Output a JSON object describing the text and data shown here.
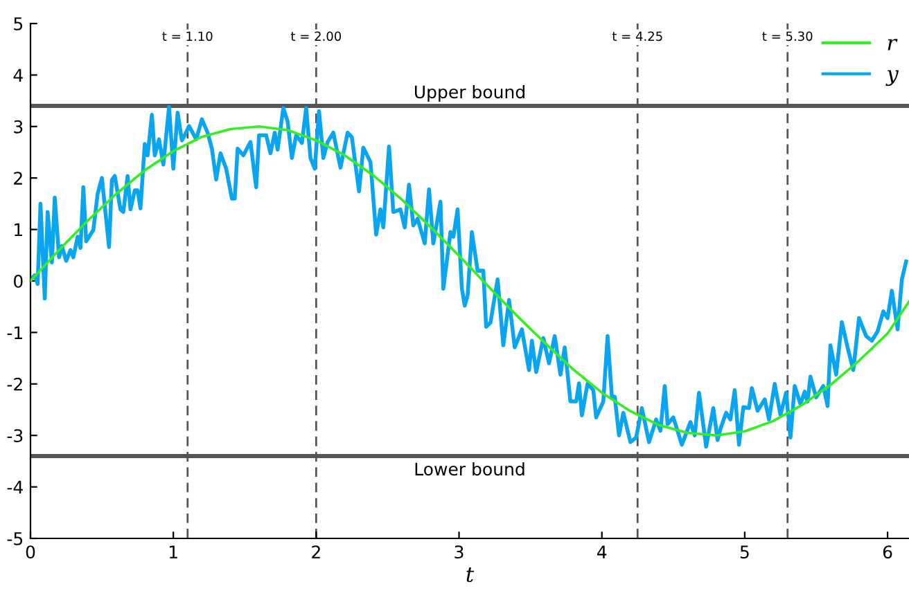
{
  "chart_data": {
    "type": "line",
    "xlabel": "t",
    "xlim": [
      0,
      6.15
    ],
    "ylim": [
      -5,
      5
    ],
    "xticks": [
      0,
      1,
      2,
      3,
      4,
      5,
      6
    ],
    "yticks": [
      -5,
      -4,
      -3,
      -2,
      -1,
      0,
      1,
      2,
      3,
      4,
      5
    ],
    "grid": false,
    "legend": "top right",
    "marker": "none",
    "line_style": "solid",
    "series": [
      {
        "name": "r",
        "color": "#33ee22",
        "x": [
          0,
          0.2,
          0.4,
          0.6,
          0.8,
          1.0,
          1.2,
          1.4,
          1.6,
          1.8,
          2.0,
          2.2,
          2.4,
          2.6,
          2.8,
          3.0,
          3.2,
          3.4,
          3.6,
          3.8,
          4.0,
          4.2,
          4.4,
          4.6,
          4.8,
          5.0,
          5.2,
          5.4,
          5.6,
          5.8,
          6.0,
          6.15
        ],
        "values": [
          0,
          0.6,
          1.17,
          1.69,
          2.15,
          2.52,
          2.8,
          2.95,
          3.0,
          2.93,
          2.73,
          2.44,
          2.05,
          1.58,
          1.05,
          0.49,
          -0.09,
          -0.66,
          -1.2,
          -1.72,
          -2.17,
          -2.53,
          -2.8,
          -2.95,
          -3.0,
          -2.92,
          -2.72,
          -2.41,
          -2.02,
          -1.55,
          -1.02,
          -0.4
        ]
      },
      {
        "name": "y",
        "color": "#0aa5f0",
        "x": [
          0,
          0.03,
          0.05,
          0.07,
          0.1,
          0.12,
          0.15,
          0.17,
          0.2,
          0.22,
          0.25,
          0.28,
          0.3,
          0.33,
          0.35,
          0.37,
          0.39,
          0.44,
          0.47,
          0.5,
          0.55,
          0.57,
          0.59,
          0.63,
          0.65,
          0.68,
          0.7,
          0.73,
          0.75,
          0.77,
          0.8,
          0.82,
          0.85,
          0.87,
          0.9,
          0.93,
          0.97,
          1.0,
          1.03,
          1.06,
          1.08,
          1.11,
          1.16,
          1.2,
          1.24,
          1.27,
          1.3,
          1.33,
          1.37,
          1.41,
          1.43,
          1.45,
          1.49,
          1.54,
          1.58,
          1.6,
          1.65,
          1.68,
          1.71,
          1.73,
          1.77,
          1.8,
          1.83,
          1.86,
          1.9,
          1.93,
          1.96,
          1.99,
          2.02,
          2.05,
          2.08,
          2.12,
          2.17,
          2.22,
          2.25,
          2.3,
          2.33,
          2.38,
          2.42,
          2.45,
          2.47,
          2.51,
          2.54,
          2.59,
          2.62,
          2.65,
          2.68,
          2.71,
          2.76,
          2.79,
          2.82,
          2.87,
          2.89,
          2.94,
          2.96,
          2.99,
          3.02,
          3.04,
          3.06,
          3.09,
          3.13,
          3.17,
          3.19,
          3.22,
          3.27,
          3.31,
          3.35,
          3.39,
          3.44,
          3.49,
          3.51,
          3.54,
          3.59,
          3.63,
          3.67,
          3.71,
          3.74,
          3.78,
          3.82,
          3.84,
          3.86,
          3.9,
          3.94,
          3.96,
          4.01,
          4.04,
          4.07,
          4.09,
          4.12,
          4.15,
          4.2,
          4.24,
          4.28,
          4.33,
          4.38,
          4.41,
          4.44,
          4.46,
          4.5,
          4.56,
          4.62,
          4.65,
          4.68,
          4.73,
          4.78,
          4.81,
          4.83,
          4.87,
          4.9,
          4.93,
          4.96,
          4.99,
          5.03,
          5.05,
          5.09,
          5.14,
          5.17,
          5.21,
          5.25,
          5.29,
          5.32,
          5.35,
          5.39,
          5.42,
          5.44,
          5.46,
          5.5,
          5.55,
          5.58,
          5.6,
          5.64,
          5.68,
          5.72,
          5.76,
          5.8,
          5.85,
          5.89,
          5.93,
          5.97,
          6.0,
          6.03,
          6.07,
          6.1,
          6.13
        ],
        "values": [
          0.03,
          0.11,
          -0.06,
          1.5,
          -0.34,
          1.34,
          0.36,
          1.62,
          0.46,
          0.68,
          0.39,
          0.6,
          0.46,
          0.86,
          0.64,
          1.82,
          0.77,
          0.99,
          1.69,
          2.0,
          0.66,
          1.96,
          2.04,
          1.39,
          1.34,
          2.04,
          1.39,
          1.76,
          1.76,
          1.41,
          2.66,
          2.44,
          3.23,
          2.44,
          2.75,
          2.26,
          3.38,
          2.18,
          3.27,
          2.73,
          2.83,
          3.01,
          2.75,
          3.14,
          2.88,
          2.57,
          1.97,
          2.48,
          2.18,
          1.6,
          1.6,
          2.57,
          2.44,
          2.7,
          1.82,
          2.83,
          2.83,
          2.48,
          2.88,
          2.55,
          3.36,
          3.1,
          2.39,
          2.83,
          2.68,
          3.36,
          2.39,
          2.18,
          3.3,
          2.39,
          2.7,
          2.88,
          2.2,
          2.88,
          2.79,
          1.74,
          2.59,
          2.31,
          0.9,
          1.39,
          1.04,
          2.61,
          1.34,
          1.39,
          1.04,
          1.87,
          1.08,
          1.21,
          0.73,
          1.78,
          0.73,
          1.54,
          -0.15,
          0.95,
          0.86,
          1.39,
          -0.15,
          -0.48,
          -0.28,
          0.95,
          0.2,
          0.2,
          -0.89,
          -0.81,
          0.03,
          -1.25,
          -0.37,
          -1.29,
          -0.94,
          -1.73,
          -1.16,
          -1.77,
          -1.11,
          -1.6,
          -1.07,
          -1.82,
          -1.29,
          -2.34,
          -2.34,
          -1.99,
          -2.61,
          -1.99,
          -2.12,
          -2.65,
          -2.34,
          -1.07,
          -2.25,
          -2.25,
          -3.0,
          -2.56,
          -3.13,
          -3.04,
          -2.47,
          -3.13,
          -2.69,
          -2.91,
          -2.04,
          -2.78,
          -2.65,
          -3.18,
          -2.74,
          -3.0,
          -2.17,
          -3.22,
          -2.47,
          -3.09,
          -2.87,
          -2.56,
          -2.69,
          -2.12,
          -3.18,
          -2.45,
          -2.47,
          -2.08,
          -2.52,
          -2.3,
          -2.69,
          -2.0,
          -2.6,
          -2.17,
          -3.04,
          -2.04,
          -2.39,
          -2.15,
          -2.34,
          -1.86,
          -2.26,
          -2.04,
          -2.43,
          -1.25,
          -1.82,
          -0.8,
          -1.29,
          -1.73,
          -0.72,
          -1.07,
          -1.16,
          -0.98,
          -0.59,
          -0.72,
          -0.19,
          -0.94,
          0.03,
          0.38
        ]
      }
    ],
    "ref_lines": [
      {
        "axis": "y",
        "value": 3.4,
        "label": "Upper bound",
        "color": "#555555"
      },
      {
        "axis": "y",
        "value": -3.4,
        "label": "Lower bound",
        "color": "#555555"
      },
      {
        "axis": "x",
        "value": 1.1,
        "label": "t = 1.10",
        "color": "#555555",
        "line_style": "dashed"
      },
      {
        "axis": "x",
        "value": 2.0,
        "label": "t = 2.00",
        "color": "#555555",
        "line_style": "dashed"
      },
      {
        "axis": "x",
        "value": 4.25,
        "label": "t = 4.25",
        "color": "#555555",
        "line_style": "dashed"
      },
      {
        "axis": "x",
        "value": 5.3,
        "label": "t = 5.30",
        "color": "#555555",
        "line_style": "dashed"
      }
    ]
  }
}
